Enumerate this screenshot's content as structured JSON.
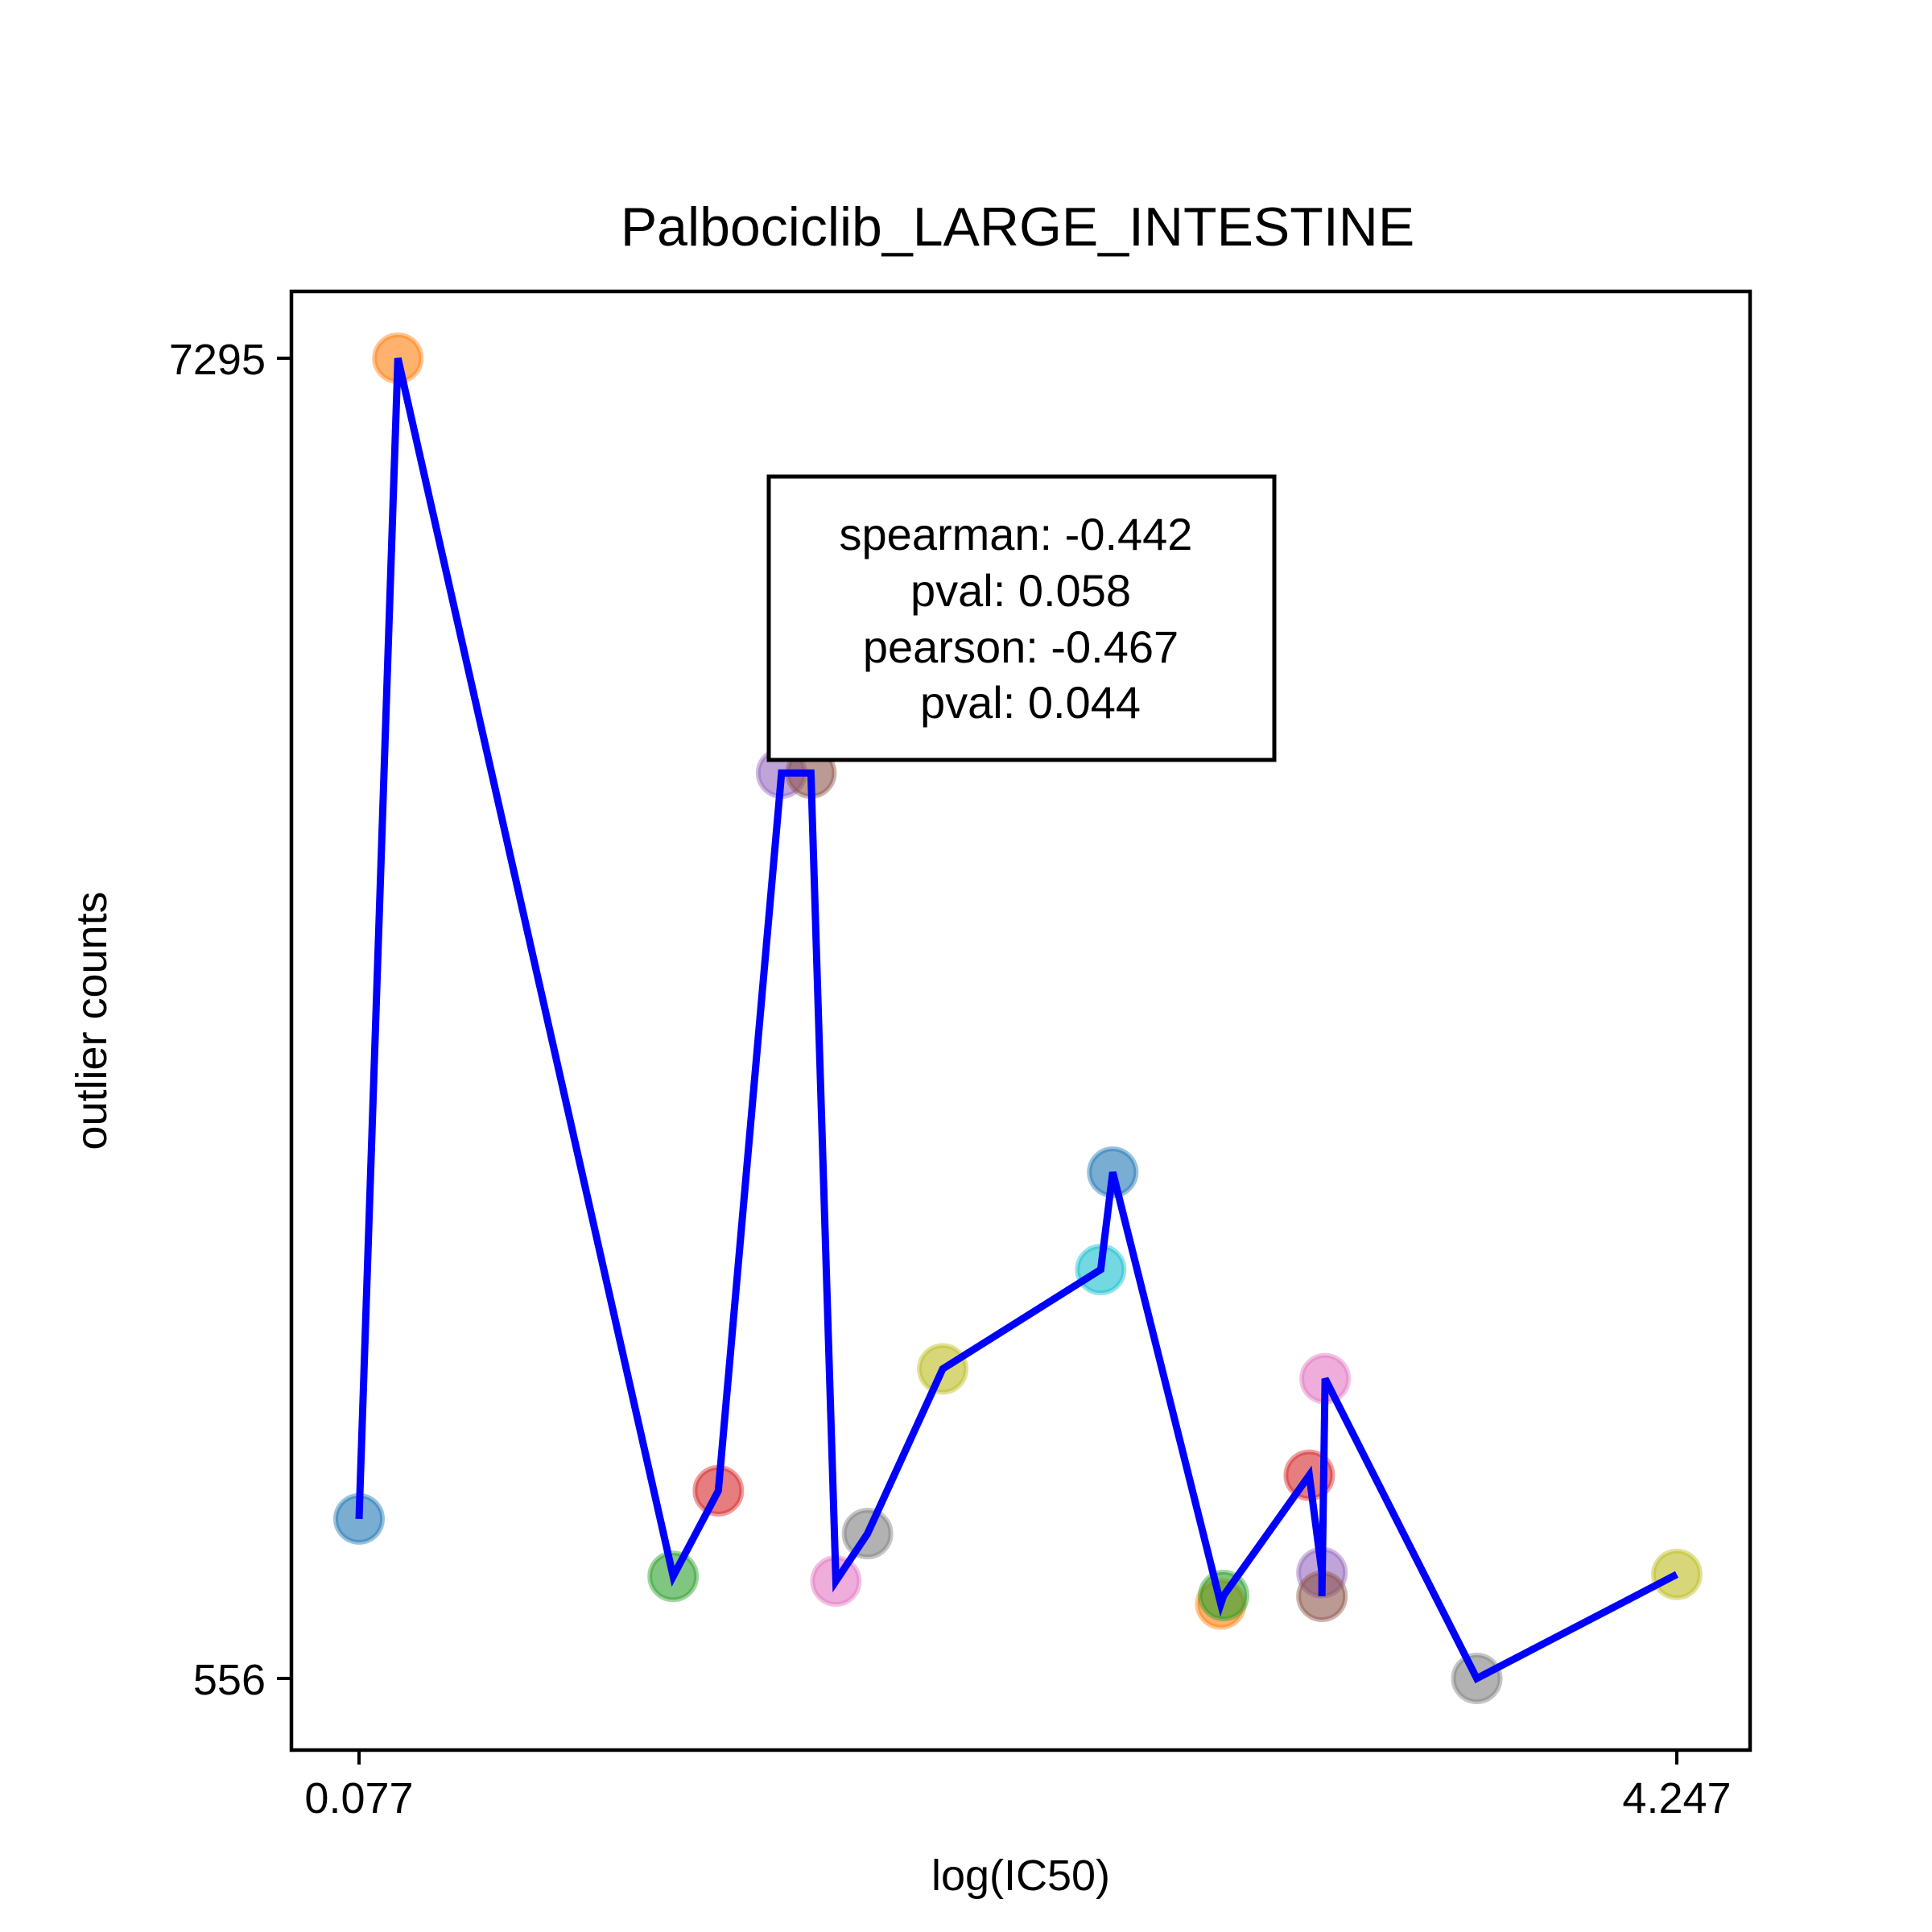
{
  "chart_data": {
    "type": "scatter",
    "title": "Palbociclib_LARGE_INTESTINE",
    "xlabel": "log(IC50)",
    "ylabel": "outlier counts",
    "x_ticks": [
      "0.077",
      "4.247"
    ],
    "y_ticks": [
      "7295",
      "556"
    ],
    "xlim": [
      0.077,
      4.247
    ],
    "ylim": [
      556,
      7295
    ],
    "grid": false,
    "legend": "none",
    "line_color": "#0000ff",
    "stats": {
      "spearman": "spearman: -0.442",
      "spearman_pval": "pval: 0.058",
      "pearson": "pearson: -0.467",
      "pearson_pval": "pval: 0.044"
    },
    "points": [
      {
        "x": 0.077,
        "y": 1370,
        "color": "#1f77b4"
      },
      {
        "x": 0.2,
        "y": 7295,
        "color": "#ff7f0e"
      },
      {
        "x": 1.071,
        "y": 1077,
        "color": "#2ca02c"
      },
      {
        "x": 1.214,
        "y": 1514,
        "color": "#d62728"
      },
      {
        "x": 1.414,
        "y": 5178,
        "color": "#9467bd"
      },
      {
        "x": 1.507,
        "y": 5178,
        "color": "#8c564b"
      },
      {
        "x": 1.586,
        "y": 1053,
        "color": "#e377c2"
      },
      {
        "x": 1.686,
        "y": 1295,
        "color": "#7f7f7f"
      },
      {
        "x": 1.924,
        "y": 2136,
        "color": "#bcbd22"
      },
      {
        "x": 2.424,
        "y": 2643,
        "color": "#17becf"
      },
      {
        "x": 2.462,
        "y": 3140,
        "color": "#1f77b4"
      },
      {
        "x": 2.804,
        "y": 936,
        "color": "#ff7f0e"
      },
      {
        "x": 2.813,
        "y": 979,
        "color": "#2ca02c"
      },
      {
        "x": 3.084,
        "y": 1593,
        "color": "#d62728"
      },
      {
        "x": 3.124,
        "y": 1096,
        "color": "#9467bd"
      },
      {
        "x": 3.124,
        "y": 975,
        "color": "#8c564b"
      },
      {
        "x": 3.134,
        "y": 2086,
        "color": "#e377c2"
      },
      {
        "x": 3.614,
        "y": 556,
        "color": "#7f7f7f"
      },
      {
        "x": 4.247,
        "y": 1087,
        "color": "#bcbd22"
      }
    ]
  }
}
